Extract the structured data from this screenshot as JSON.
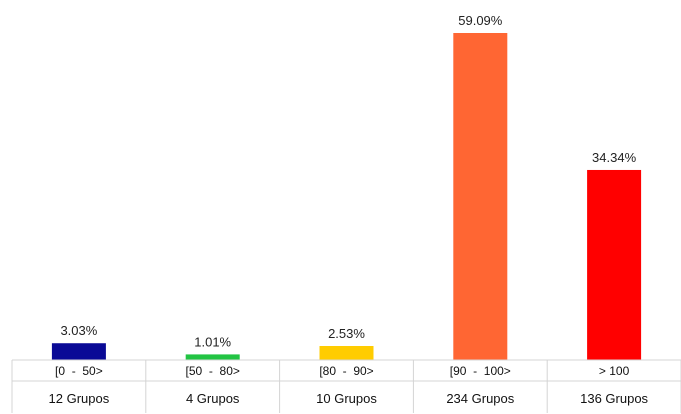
{
  "chart_data": {
    "type": "bar",
    "categories": [
      "[0  -  50>",
      "[50  -  80>",
      "[80  -  90>",
      "[90  -  100>",
      "> 100"
    ],
    "values": [
      3.03,
      1.01,
      2.53,
      59.09,
      34.34
    ],
    "value_labels": [
      "3.03%",
      "1.01%",
      "2.53%",
      "59.09%",
      "34.34%"
    ],
    "group_counts": [
      "12 Grupos",
      "4 Grupos",
      "10 Grupos",
      "234 Grupos",
      "136 Grupos"
    ],
    "colors": [
      "#0a0a96",
      "#22c443",
      "#ffcc00",
      "#ff6633",
      "#ff0000"
    ],
    "ylim": [
      0,
      59.09
    ],
    "grid": false,
    "legend": "none"
  }
}
